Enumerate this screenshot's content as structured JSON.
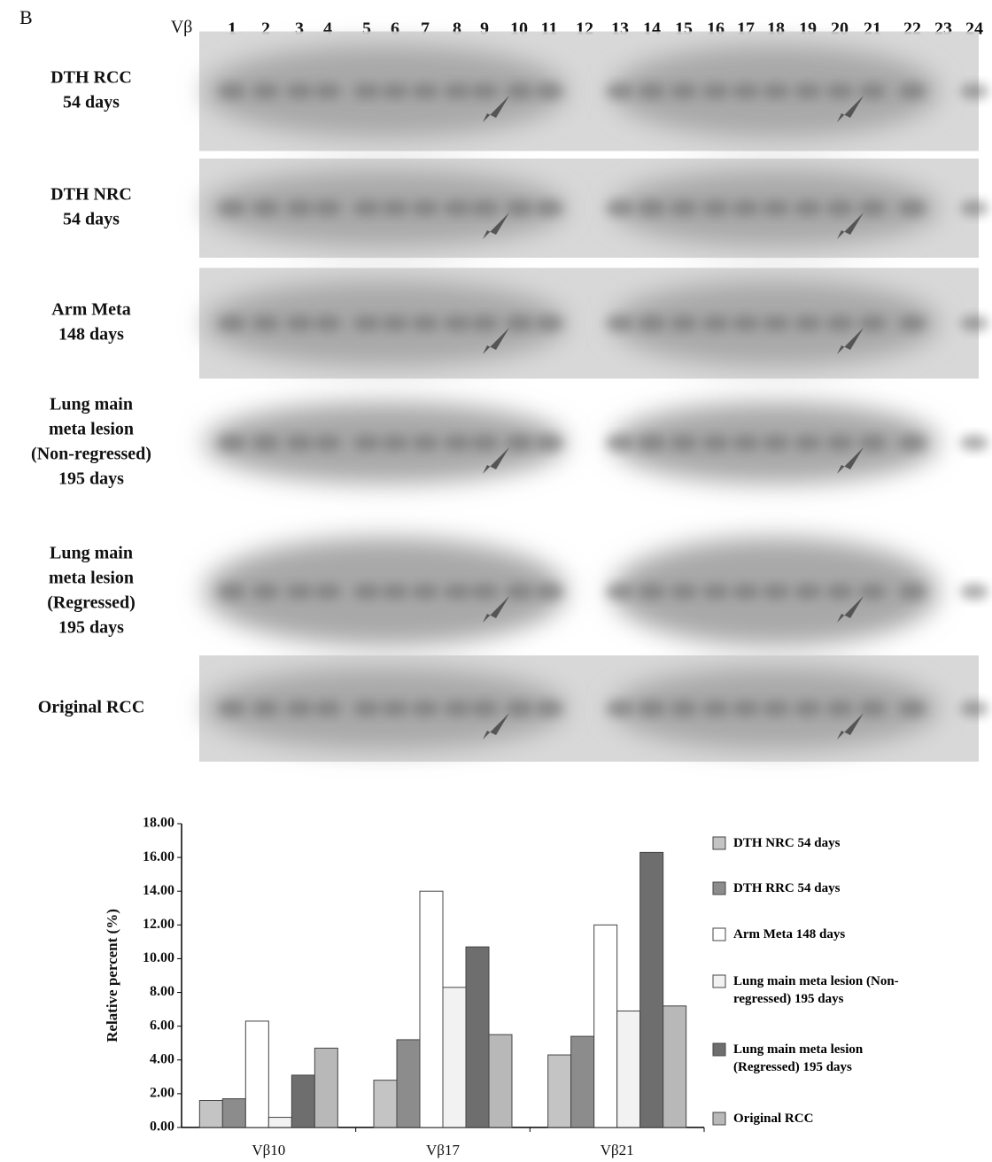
{
  "panel_label": "B",
  "gel": {
    "lane_header": "Vβ",
    "lanes": [
      "1",
      "2",
      "3",
      "4",
      "5",
      "6",
      "7",
      "8",
      "9",
      "10",
      "11",
      "12",
      "13",
      "14",
      "15",
      "16",
      "17",
      "18",
      "19",
      "20",
      "21",
      "22",
      "23",
      "24"
    ],
    "rows": [
      [
        "DTH RCC",
        "54 days"
      ],
      [
        "DTH NRC",
        "54 days"
      ],
      [
        "Arm Meta",
        "148 days"
      ],
      [
        "Lung main",
        "meta lesion",
        "(Non-regressed)",
        "195 days"
      ],
      [
        "Lung main",
        "meta lesion",
        "(Regressed)",
        "195 days"
      ],
      [
        "Original RCC"
      ]
    ]
  },
  "chart_data": {
    "type": "bar",
    "y_label": "Relative percent (%)",
    "categories": [
      "Vβ10",
      "Vβ17",
      "Vβ21"
    ],
    "ylim": [
      0,
      18
    ],
    "yticks": [
      {
        "value": 0,
        "label": "0.00"
      },
      {
        "value": 2,
        "label": "2.00"
      },
      {
        "value": 4,
        "label": "4.00"
      },
      {
        "value": 6,
        "label": "6.00"
      },
      {
        "value": 8,
        "label": "8.00"
      },
      {
        "value": 10,
        "label": "10.00"
      },
      {
        "value": 12,
        "label": "12.00"
      },
      {
        "value": 14,
        "label": "14.00"
      },
      {
        "value": 16,
        "label": "16.00"
      },
      {
        "value": 18,
        "label": "18.00"
      }
    ],
    "series": [
      {
        "name": "DTH NRC 54 days",
        "color": "#c4c4c4",
        "values": [
          1.6,
          2.8,
          4.3
        ]
      },
      {
        "name": "DTH RRC 54 days",
        "color": "#8c8c8c",
        "values": [
          1.7,
          5.2,
          5.4
        ]
      },
      {
        "name": "Arm Meta 148 days",
        "color": "#ffffff",
        "values": [
          6.3,
          14.0,
          12.0
        ]
      },
      {
        "name": "Lung main meta lesion (Non-regressed) 195 days",
        "color": "#f2f2f2",
        "values": [
          0.6,
          8.3,
          6.9
        ]
      },
      {
        "name": "Lung main meta lesion (Regressed) 195 days",
        "color": "#6e6e6e",
        "values": [
          3.1,
          10.7,
          16.3
        ]
      },
      {
        "name": "Original RCC",
        "color": "#b8b8b8",
        "values": [
          4.7,
          5.5,
          7.2
        ]
      }
    ]
  }
}
